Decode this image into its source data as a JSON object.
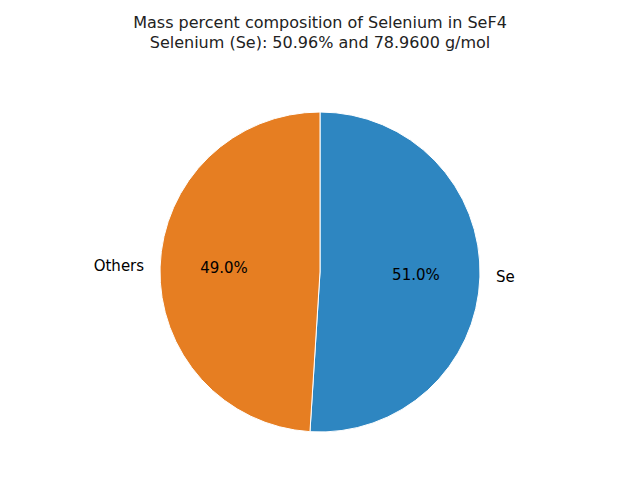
{
  "chart_data": {
    "type": "pie",
    "title": "Mass percent composition of Selenium in SeF4\nSelenium (Se): 50.96% and 78.9600 g/mol",
    "categories": [
      "Se",
      "Others"
    ],
    "values": [
      51.0,
      49.0
    ],
    "value_labels": [
      "51.0%",
      "49.0%"
    ],
    "colors": [
      "#2e86c1",
      "#e67e22"
    ],
    "data_labels": true
  }
}
